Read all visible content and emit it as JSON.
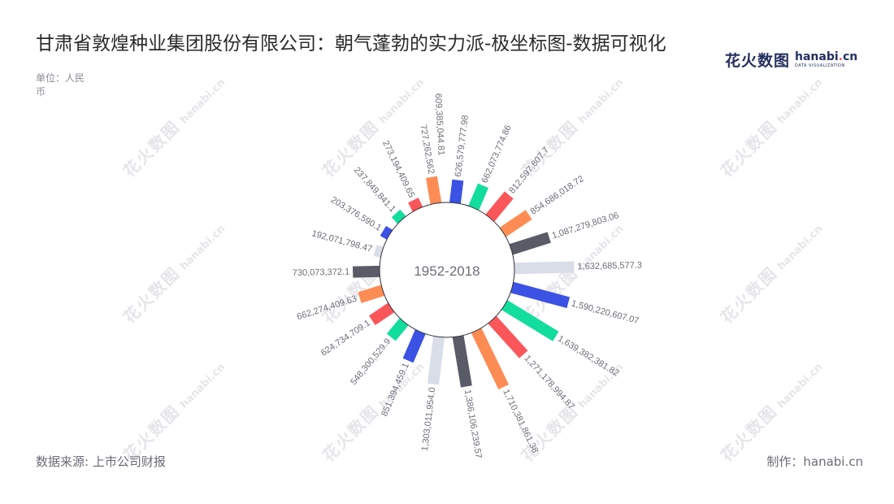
{
  "page": {
    "title": "甘肃省敦煌种业集团股份有限公司：朝气蓬勃的实力派-极坐标图-数据可视化",
    "unit": "单位：人民币",
    "source": "数据来源: 上市公司财报",
    "maker": "制作：hanabi.cn"
  },
  "logo": {
    "cn": "花火数图",
    "en_main": "hanabi",
    "en_dot": ".",
    "en_tail": "cn",
    "en_sub": "DATA VISUALIZATION"
  },
  "watermark": {
    "cn": "花火数图",
    "en": "hanabi.cn"
  },
  "colors": {
    "palette": [
      "#3b52e4",
      "#12dd9d",
      "#fb565a",
      "#fd8c54",
      "#595b67",
      "#d9dde8"
    ]
  },
  "chart_data": {
    "type": "bar",
    "subtype": "polar-radial-bar",
    "center_label": "1952-2018",
    "categories": [
      "c01",
      "c02",
      "c03",
      "c04",
      "c05",
      "c06",
      "c07",
      "c08",
      "c09",
      "c10",
      "c11",
      "c12",
      "c13",
      "c14",
      "c15",
      "c16",
      "c17",
      "c18",
      "c19",
      "c20",
      "c21",
      "c22"
    ],
    "values": [
      626579777.98,
      662073774.86,
      812597807.7,
      854686018.72,
      1087279803.06,
      1632685577.3,
      1590220607.07,
      1639382381.82,
      1271178994.87,
      1710381861.38,
      1386106239.57,
      1303011954.0,
      851394459.1,
      548300529.9,
      624734709.1,
      662274409.63,
      730073372.1,
      192071798.47,
      203376590.1,
      237849841.1,
      273194409.65,
      727262562.0
    ],
    "labels": [
      "626,579,777.98",
      "662,073,774.86",
      "812,597,807.7",
      "854,686,018.72",
      "1,087,279,803.06",
      "1,632,685,577.3",
      "1,590,220,607.07",
      "1,639,382,381.82",
      "1,271,178,994.87",
      "1,710,381,861.38",
      "1,386,106,239.57",
      "1,303,011,954.0",
      "851,394,459.1",
      "548,300,529.9",
      "624,734,709.1",
      "662,274,409.63",
      "730,073,372.1",
      "192,071,798.47",
      "203,376,590.1",
      "237,849,841.1",
      "273,194,409.65",
      "727,262,562"
    ],
    "extra_label": "609,385,044.81",
    "color_order": [
      "#3b52e4",
      "#12dd9d",
      "#fb565a",
      "#fd8c54",
      "#595b67",
      "#d9dde8"
    ],
    "sort": "clockwise from top",
    "grid": false,
    "legend": "none"
  }
}
